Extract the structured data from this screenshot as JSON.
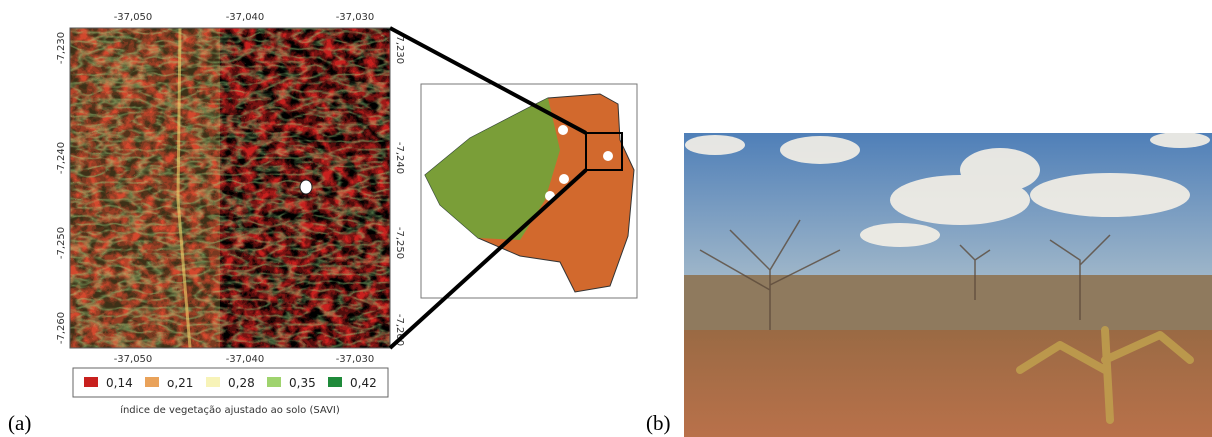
{
  "map": {
    "x_ticks_top": [
      "-37,050",
      "-37,040",
      "-37,030"
    ],
    "x_ticks_bottom": [
      "-37,050",
      "-37,040",
      "-37,030"
    ],
    "y_ticks_left": [
      "-7,230",
      "-7,240",
      "-7,250",
      "-7,260"
    ],
    "y_ticks_right": [
      "-7,230",
      "-7,240",
      "-7,250",
      "-7,260"
    ],
    "legend": [
      {
        "label": "0,14",
        "color": "#c8201e"
      },
      {
        "label": "o,21",
        "color": "#e9a25a"
      },
      {
        "label": "0,28",
        "color": "#f7f3b8"
      },
      {
        "label": "0,35",
        "color": "#9fd36e"
      },
      {
        "label": "0,42",
        "color": "#1f8a3a"
      }
    ],
    "caption": "índice de vegetação ajustado ao solo (SAVI)"
  },
  "labels": {
    "a": "(a)",
    "b": "(b)"
  }
}
